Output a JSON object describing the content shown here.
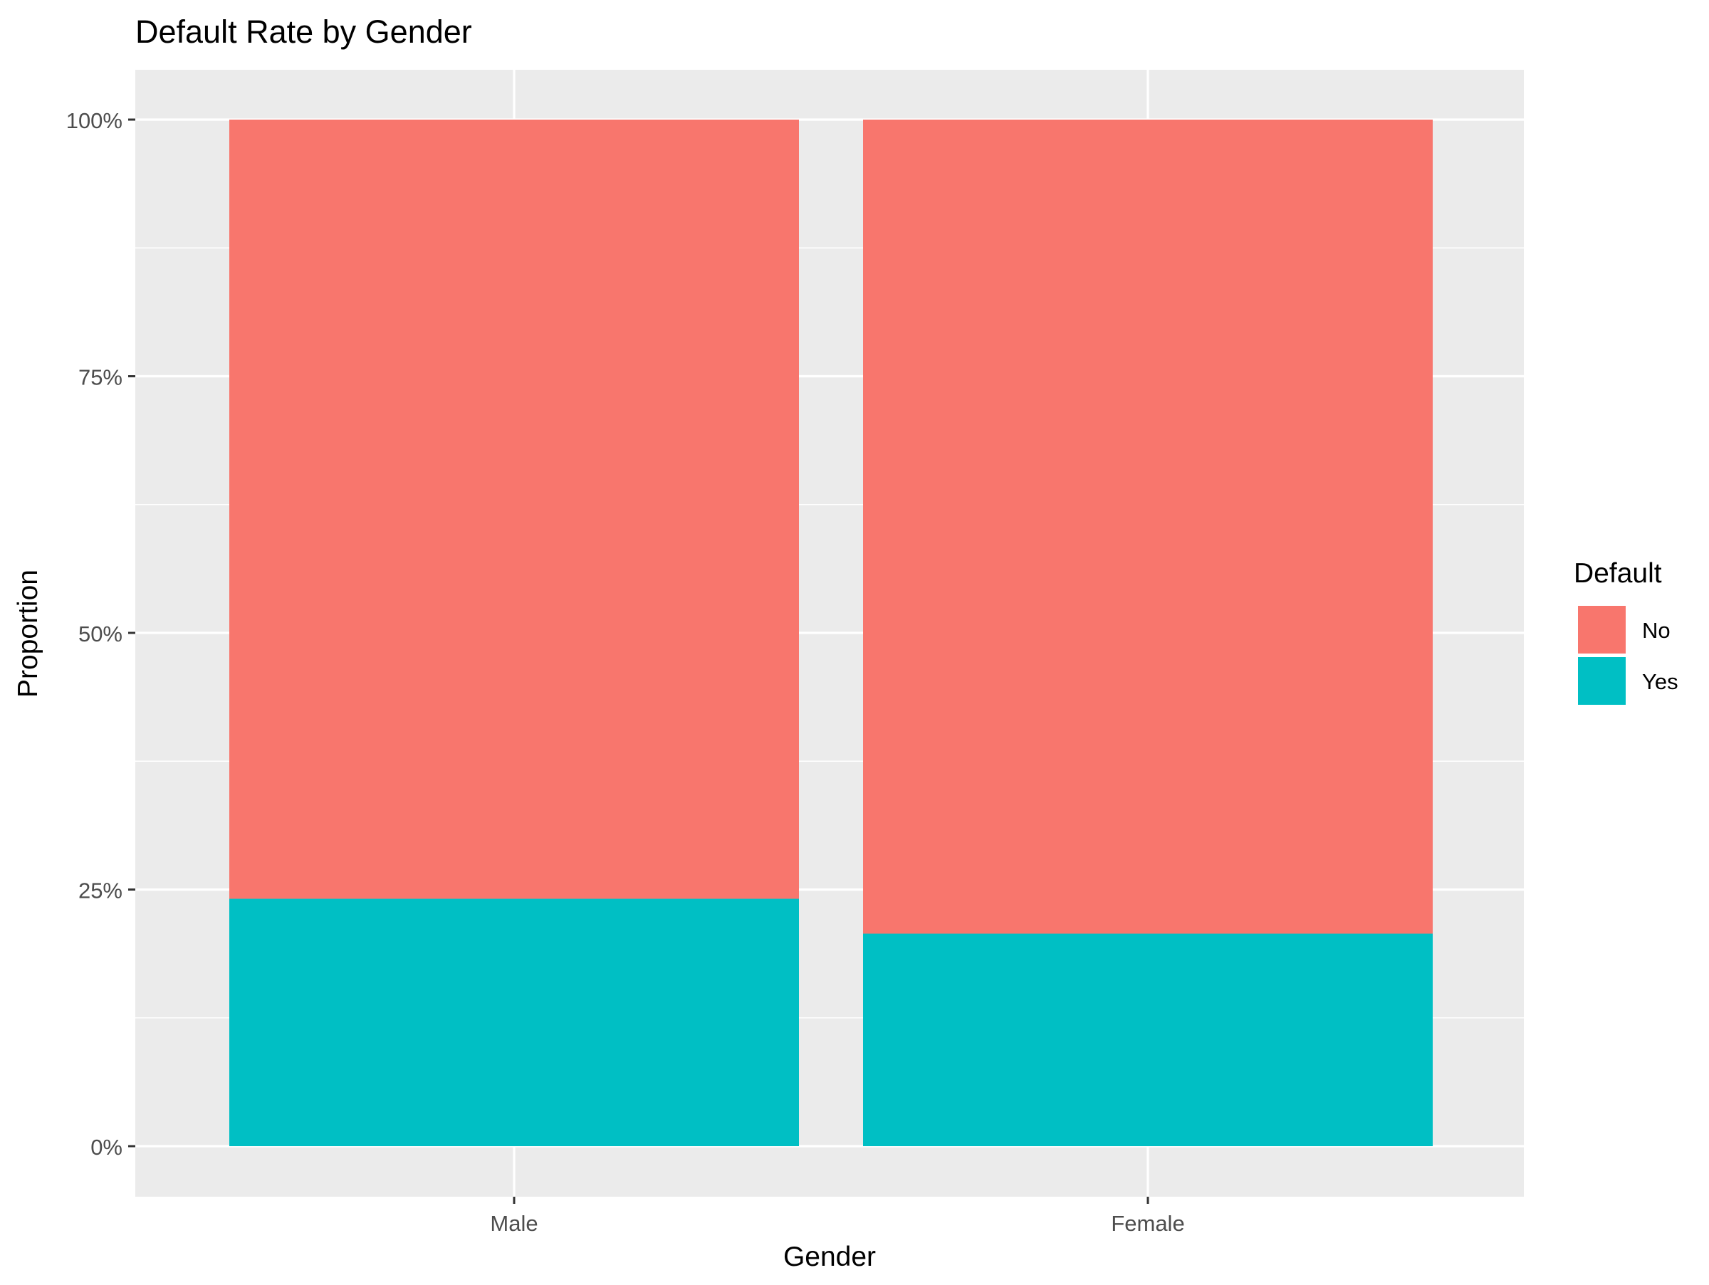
{
  "chart_data": {
    "type": "bar",
    "stacked": true,
    "position": "fill",
    "title": "Default Rate by Gender",
    "xlabel": "Gender",
    "ylabel": "Proportion",
    "categories": [
      "Male",
      "Female"
    ],
    "series": [
      {
        "name": "No",
        "color": "#F8766D",
        "values": [
          0.759,
          0.793
        ]
      },
      {
        "name": "Yes",
        "color": "#00BFC4",
        "values": [
          0.241,
          0.207
        ]
      }
    ],
    "ylim": [
      0,
      1
    ],
    "yticks": [
      0,
      0.25,
      0.5,
      0.75,
      1
    ],
    "ytick_labels": [
      "0%",
      "25%",
      "50%",
      "75%",
      "100%"
    ],
    "grid": true,
    "legend": {
      "title": "Default",
      "position": "right",
      "entries": [
        "No",
        "Yes"
      ]
    },
    "panel_background": "#EBEBEB",
    "grid_color": "#FFFFFF"
  }
}
